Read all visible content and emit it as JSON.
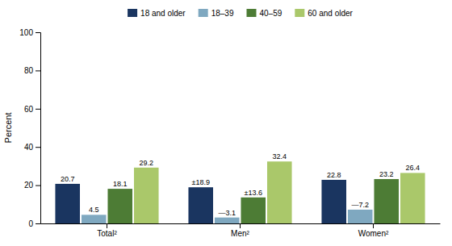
{
  "chart_data": {
    "type": "bar",
    "categories": [
      "Total²",
      "Men²",
      "Women²"
    ],
    "series": [
      {
        "name": "18 and older",
        "color": "#1a3560",
        "values": [
          20.7,
          18.9,
          22.8
        ],
        "value_labels": [
          "20.7",
          "±18.9",
          "22.8"
        ]
      },
      {
        "name": "18–39",
        "color": "#7fa8c0",
        "values": [
          4.5,
          3.1,
          7.2
        ],
        "value_labels": [
          "4.5",
          "—3.1",
          "—7.2"
        ]
      },
      {
        "name": "40–59",
        "color": "#4d7c35",
        "values": [
          18.1,
          13.6,
          23.2
        ],
        "value_labels": [
          "18.1",
          "±13.6",
          "23.2"
        ]
      },
      {
        "name": "60 and older",
        "color": "#aac86a",
        "values": [
          29.2,
          32.4,
          26.4
        ],
        "value_labels": [
          "29.2",
          "32.4",
          "26.4"
        ]
      }
    ],
    "ylabel": "Percent",
    "ylim": [
      0,
      100
    ],
    "yticks": [
      0,
      20,
      40,
      60,
      80,
      100
    ],
    "grid": false,
    "legend": "top",
    "data_labels": true
  }
}
